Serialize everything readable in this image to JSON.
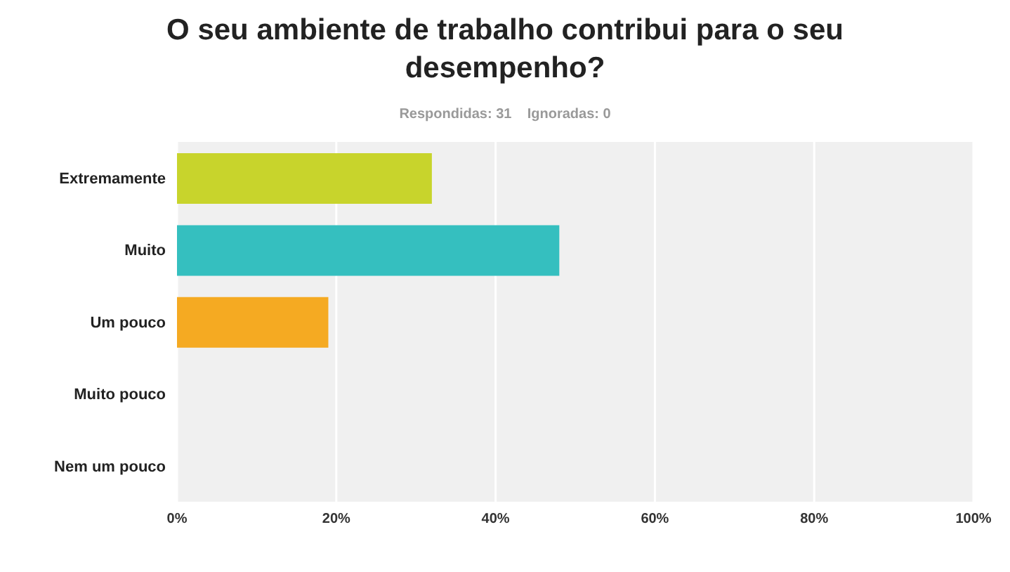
{
  "chart_data": {
    "type": "bar",
    "orientation": "horizontal",
    "title": "O seu ambiente de trabalho contribui para o seu desempenho?",
    "subtitle": "Respondidas: 31    Ignoradas: 0",
    "categories": [
      "Extremamente",
      "Muito",
      "Um pouco",
      "Muito pouco",
      "Nem um pouco"
    ],
    "values": [
      32,
      48,
      19,
      0,
      0
    ],
    "colors": [
      "#c8d42c",
      "#35bfbf",
      "#f5aa22",
      "#888888",
      "#888888"
    ],
    "xlim": [
      0,
      100
    ],
    "xticks": [
      {
        "value": 0,
        "label": "0%"
      },
      {
        "value": 20,
        "label": "20%"
      },
      {
        "value": 40,
        "label": "40%"
      },
      {
        "value": 60,
        "label": "60%"
      },
      {
        "value": 80,
        "label": "80%"
      },
      {
        "value": 100,
        "label": "100%"
      }
    ],
    "grid": "x"
  }
}
